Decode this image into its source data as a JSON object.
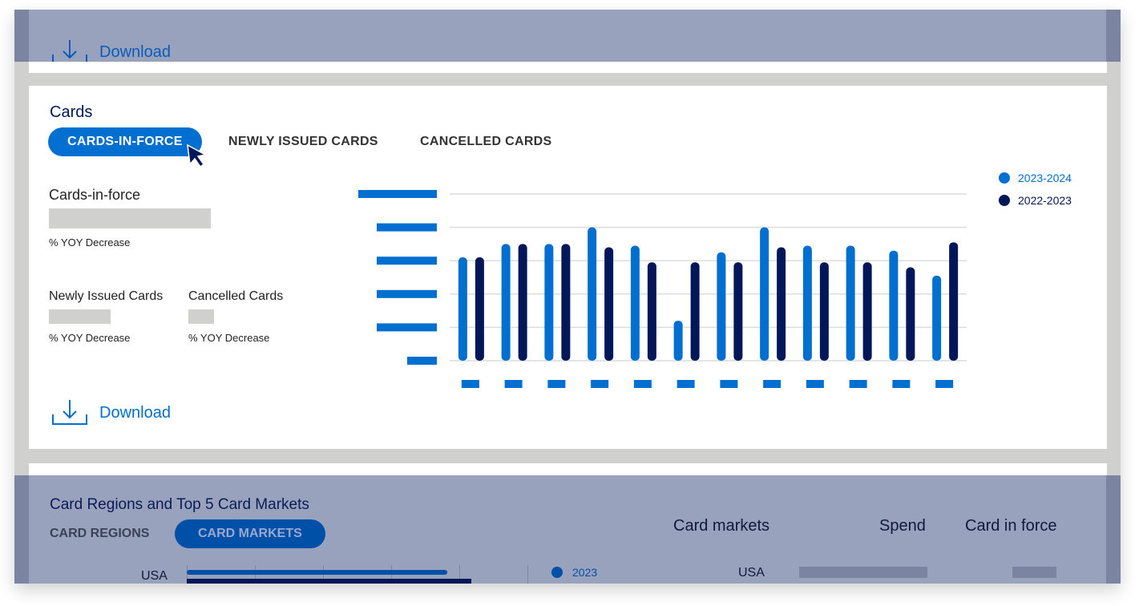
{
  "top_section": {
    "download_label": "Download"
  },
  "cards": {
    "title": "Cards",
    "tabs": [
      {
        "label": "CARDS-IN-FORCE",
        "active": true
      },
      {
        "label": "NEWLY ISSUED CARDS",
        "active": false
      },
      {
        "label": "CANCELLED CARDS",
        "active": false
      }
    ],
    "cards_in_force": {
      "label": "Cards-in-force",
      "yoy": "% YOY Decrease"
    },
    "newly_issued": {
      "label": "Newly Issued Cards",
      "yoy": "% YOY Decrease"
    },
    "cancelled": {
      "label": "Cancelled Cards",
      "yoy": "% YOY Decrease"
    },
    "download_label": "Download"
  },
  "chart_data": {
    "type": "bar",
    "ylim": [
      0,
      5
    ],
    "grid": true,
    "legend_placement": "top-right",
    "tick_labels": "redacted placeholders",
    "series": [
      {
        "name": "2023-2024",
        "color": "#006fcf",
        "values": [
          3.1,
          3.5,
          3.5,
          4.0,
          3.45,
          1.2,
          3.25,
          4.0,
          3.45,
          3.45,
          3.3,
          2.55
        ]
      },
      {
        "name": "2022-2023",
        "color": "#00175a",
        "values": [
          3.1,
          3.5,
          3.5,
          3.4,
          2.95,
          2.95,
          2.95,
          3.4,
          2.95,
          2.95,
          2.8,
          3.55
        ]
      }
    ]
  },
  "bottom_section": {
    "title": "Card Regions and Top 5 Card Markets",
    "tabs": [
      {
        "label": "CARD REGIONS",
        "active": false
      },
      {
        "label": "CARD MARKETS",
        "active": true
      }
    ],
    "columns": [
      "Card markets",
      "Spend",
      "Card in force"
    ],
    "row_market": "USA",
    "bar_label": "USA",
    "legend": "2023"
  },
  "colors": {
    "accent": "#006fcf",
    "navy": "#00175a",
    "overlay": "#98a2bd"
  }
}
